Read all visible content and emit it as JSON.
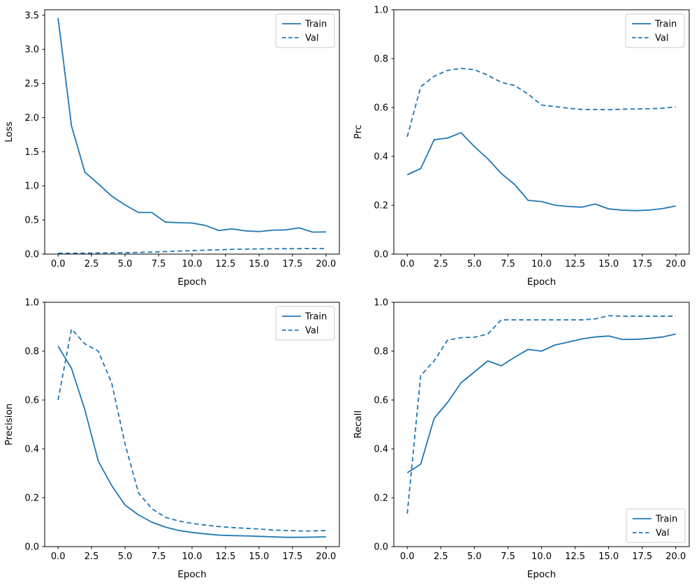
{
  "figure": {
    "background": "#ffffff",
    "accent_color": "#1f77b4"
  },
  "chart_data": [
    {
      "type": "line",
      "name": "loss",
      "xlabel": "Epoch",
      "ylabel": "Loss",
      "x": [
        0,
        1,
        2,
        3,
        4,
        5,
        6,
        7,
        8,
        9,
        10,
        11,
        12,
        13,
        14,
        15,
        16,
        17,
        18,
        19,
        20
      ],
      "series": [
        {
          "name": "Train",
          "style": "solid",
          "values": [
            3.46,
            1.88,
            1.2,
            1.03,
            0.85,
            0.72,
            0.61,
            0.61,
            0.47,
            0.46,
            0.455,
            0.42,
            0.345,
            0.37,
            0.34,
            0.33,
            0.35,
            0.355,
            0.385,
            0.322,
            0.325
          ]
        },
        {
          "name": "Val",
          "style": "dashed",
          "values": [
            0.012,
            0.013,
            0.014,
            0.016,
            0.018,
            0.021,
            0.025,
            0.03,
            0.037,
            0.044,
            0.051,
            0.058,
            0.064,
            0.069,
            0.073,
            0.076,
            0.078,
            0.079,
            0.08,
            0.081,
            0.082
          ]
        }
      ],
      "color": "#1f77b4",
      "xlim": [
        -1,
        21
      ],
      "ylim": [
        0,
        3.58
      ],
      "xticks": [
        0,
        2.5,
        5,
        7.5,
        10,
        12.5,
        15,
        17.5,
        20
      ],
      "xtick_labels": [
        "0.0",
        "2.5",
        "5.0",
        "7.5",
        "10.0",
        "12.5",
        "15.0",
        "17.5",
        "20.0"
      ],
      "yticks": [
        0,
        0.5,
        1,
        1.5,
        2,
        2.5,
        3,
        3.5
      ],
      "ytick_labels": [
        "0.0",
        "0.5",
        "1.0",
        "1.5",
        "2.0",
        "2.5",
        "3.0",
        "3.5"
      ],
      "grid": false,
      "legend": {
        "position": "upper-right",
        "entries": [
          "Train",
          "Val"
        ]
      }
    },
    {
      "type": "line",
      "name": "prc",
      "xlabel": "Epoch",
      "ylabel": "Prc",
      "x": [
        0,
        1,
        2,
        3,
        4,
        5,
        6,
        7,
        8,
        9,
        10,
        11,
        12,
        13,
        14,
        15,
        16,
        17,
        18,
        19,
        20
      ],
      "series": [
        {
          "name": "Train",
          "style": "solid",
          "values": [
            0.325,
            0.35,
            0.468,
            0.475,
            0.497,
            0.44,
            0.39,
            0.33,
            0.285,
            0.22,
            0.215,
            0.2,
            0.195,
            0.192,
            0.205,
            0.185,
            0.18,
            0.178,
            0.18,
            0.186,
            0.197
          ]
        },
        {
          "name": "Val",
          "style": "dashed",
          "values": [
            0.48,
            0.685,
            0.728,
            0.752,
            0.76,
            0.755,
            0.732,
            0.703,
            0.69,
            0.655,
            0.61,
            0.604,
            0.597,
            0.592,
            0.592,
            0.591,
            0.593,
            0.594,
            0.595,
            0.597,
            0.603
          ]
        }
      ],
      "color": "#1f77b4",
      "xlim": [
        -1,
        21
      ],
      "ylim": [
        0,
        1
      ],
      "xticks": [
        0,
        2.5,
        5,
        7.5,
        10,
        12.5,
        15,
        17.5,
        20
      ],
      "xtick_labels": [
        "0.0",
        "2.5",
        "5.0",
        "7.5",
        "10.0",
        "12.5",
        "15.0",
        "17.5",
        "20.0"
      ],
      "yticks": [
        0,
        0.2,
        0.4,
        0.6,
        0.8,
        1
      ],
      "ytick_labels": [
        "0.0",
        "0.2",
        "0.4",
        "0.6",
        "0.8",
        "1.0"
      ],
      "grid": false,
      "legend": {
        "position": "upper-right",
        "entries": [
          "Train",
          "Val"
        ]
      }
    },
    {
      "type": "line",
      "name": "precision",
      "xlabel": "Epoch",
      "ylabel": "Precision",
      "x": [
        0,
        1,
        2,
        3,
        4,
        5,
        6,
        7,
        8,
        9,
        10,
        11,
        12,
        13,
        14,
        15,
        16,
        17,
        18,
        19,
        20
      ],
      "series": [
        {
          "name": "Train",
          "style": "solid",
          "values": [
            0.82,
            0.73,
            0.56,
            0.35,
            0.25,
            0.17,
            0.13,
            0.1,
            0.08,
            0.066,
            0.058,
            0.052,
            0.047,
            0.045,
            0.044,
            0.042,
            0.04,
            0.038,
            0.038,
            0.039,
            0.04
          ]
        },
        {
          "name": "Val",
          "style": "dashed",
          "values": [
            0.6,
            0.89,
            0.83,
            0.8,
            0.67,
            0.42,
            0.22,
            0.155,
            0.12,
            0.105,
            0.095,
            0.088,
            0.082,
            0.078,
            0.075,
            0.072,
            0.068,
            0.066,
            0.064,
            0.064,
            0.066
          ]
        }
      ],
      "color": "#1f77b4",
      "xlim": [
        -1,
        21
      ],
      "ylim": [
        0,
        1
      ],
      "xticks": [
        0,
        2.5,
        5,
        7.5,
        10,
        12.5,
        15,
        17.5,
        20
      ],
      "xtick_labels": [
        "0.0",
        "2.5",
        "5.0",
        "7.5",
        "10.0",
        "12.5",
        "15.0",
        "17.5",
        "20.0"
      ],
      "yticks": [
        0,
        0.2,
        0.4,
        0.6,
        0.8,
        1
      ],
      "ytick_labels": [
        "0.0",
        "0.2",
        "0.4",
        "0.6",
        "0.8",
        "1.0"
      ],
      "grid": false,
      "legend": {
        "position": "upper-right",
        "entries": [
          "Train",
          "Val"
        ]
      }
    },
    {
      "type": "line",
      "name": "recall",
      "xlabel": "Epoch",
      "ylabel": "Recall",
      "x": [
        0,
        1,
        2,
        3,
        4,
        5,
        6,
        7,
        8,
        9,
        10,
        11,
        12,
        13,
        14,
        15,
        16,
        17,
        18,
        19,
        20
      ],
      "series": [
        {
          "name": "Train",
          "style": "solid",
          "values": [
            0.302,
            0.337,
            0.525,
            0.59,
            0.67,
            0.715,
            0.76,
            0.74,
            0.775,
            0.807,
            0.8,
            0.825,
            0.837,
            0.85,
            0.858,
            0.862,
            0.848,
            0.848,
            0.852,
            0.858,
            0.87
          ]
        },
        {
          "name": "Val",
          "style": "dashed",
          "values": [
            0.135,
            0.7,
            0.76,
            0.845,
            0.855,
            0.857,
            0.87,
            0.928,
            0.928,
            0.928,
            0.928,
            0.928,
            0.928,
            0.928,
            0.932,
            0.945,
            0.943,
            0.943,
            0.943,
            0.943,
            0.943
          ]
        }
      ],
      "color": "#1f77b4",
      "xlim": [
        -1,
        21
      ],
      "ylim": [
        0,
        1
      ],
      "xticks": [
        0,
        2.5,
        5,
        7.5,
        10,
        12.5,
        15,
        17.5,
        20
      ],
      "xtick_labels": [
        "0.0",
        "2.5",
        "5.0",
        "7.5",
        "10.0",
        "12.5",
        "15.0",
        "17.5",
        "20.0"
      ],
      "yticks": [
        0,
        0.2,
        0.4,
        0.6,
        0.8,
        1
      ],
      "ytick_labels": [
        "0.0",
        "0.2",
        "0.4",
        "0.6",
        "0.8",
        "1.0"
      ],
      "grid": false,
      "legend": {
        "position": "lower-right",
        "entries": [
          "Train",
          "Val"
        ]
      }
    }
  ]
}
